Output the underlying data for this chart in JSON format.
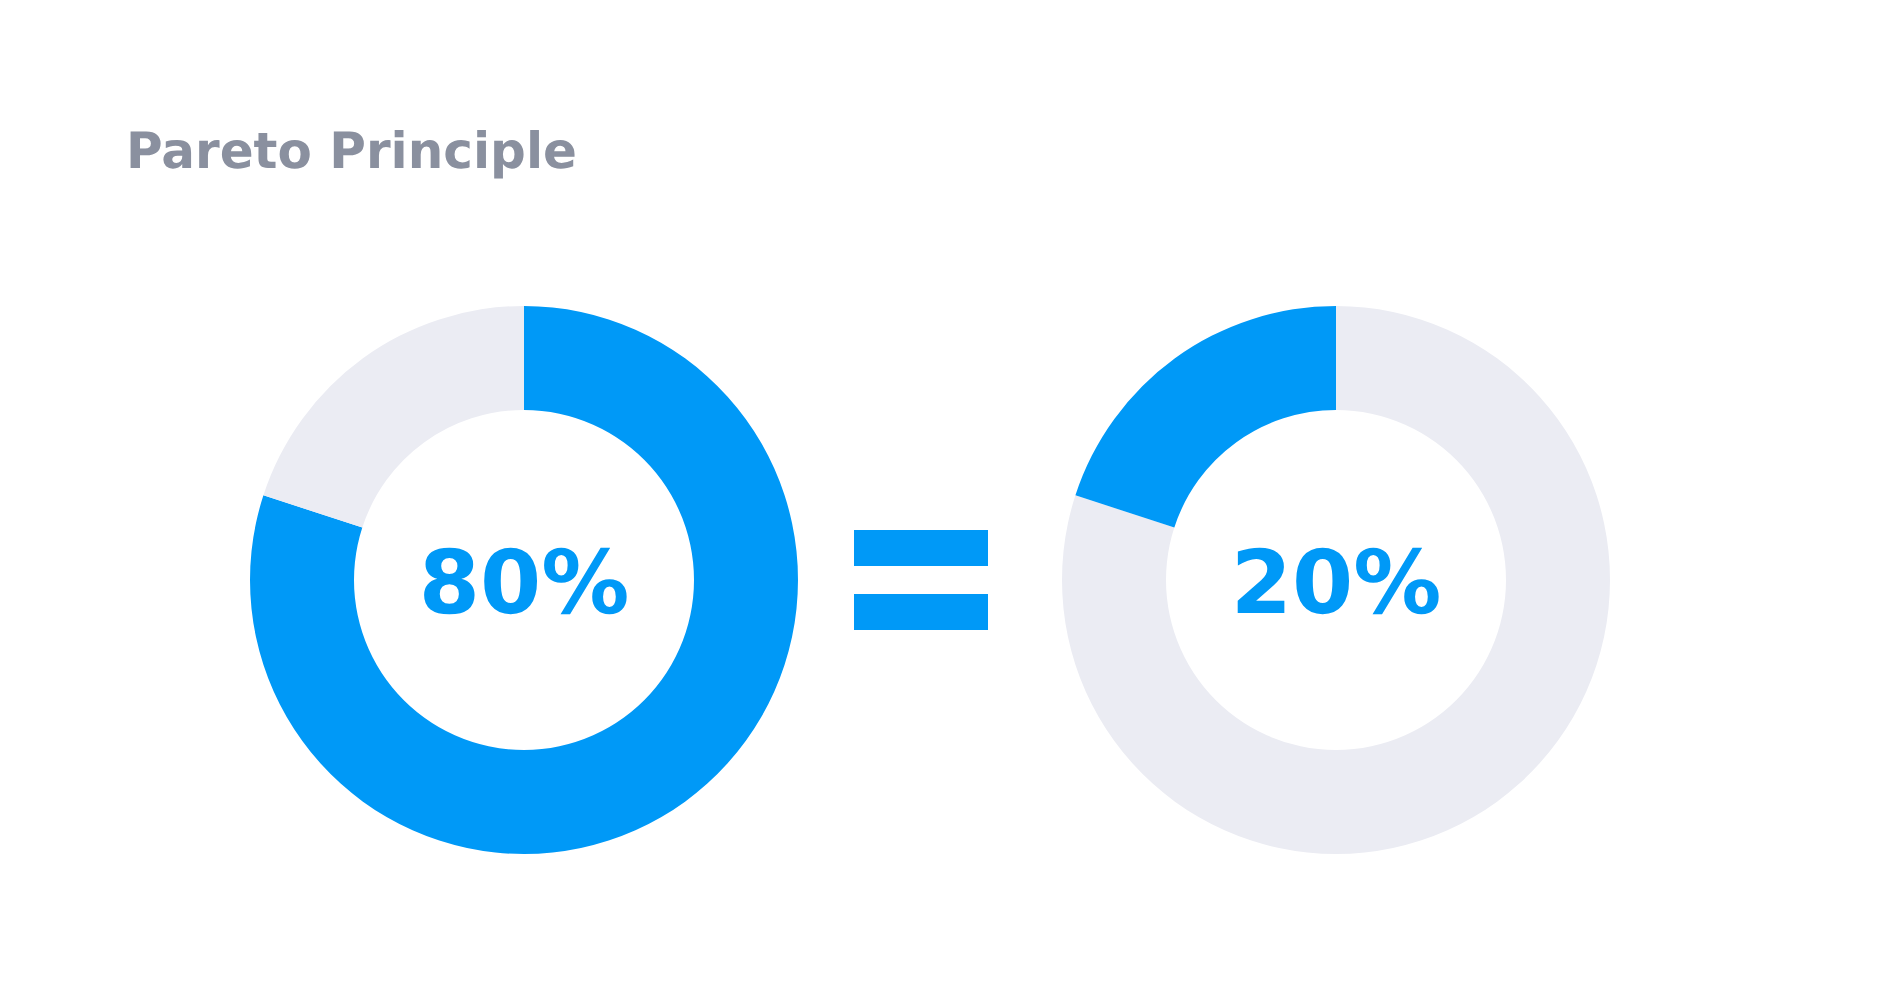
{
  "chart_data": [
    {
      "type": "donut",
      "title": "Pareto Principle",
      "categories": [
        null,
        null
      ],
      "values": [
        80,
        20
      ],
      "colors": [
        "#0099f7",
        "#ebecf3"
      ],
      "annotations": [
        "80%"
      ]
    },
    {
      "type": "donut",
      "categories": [
        null,
        null
      ],
      "values": [
        80,
        20
      ],
      "colors": [
        "#ebecf3",
        "#0099f7"
      ],
      "annotations": [
        "20%"
      ]
    }
  ]
}
